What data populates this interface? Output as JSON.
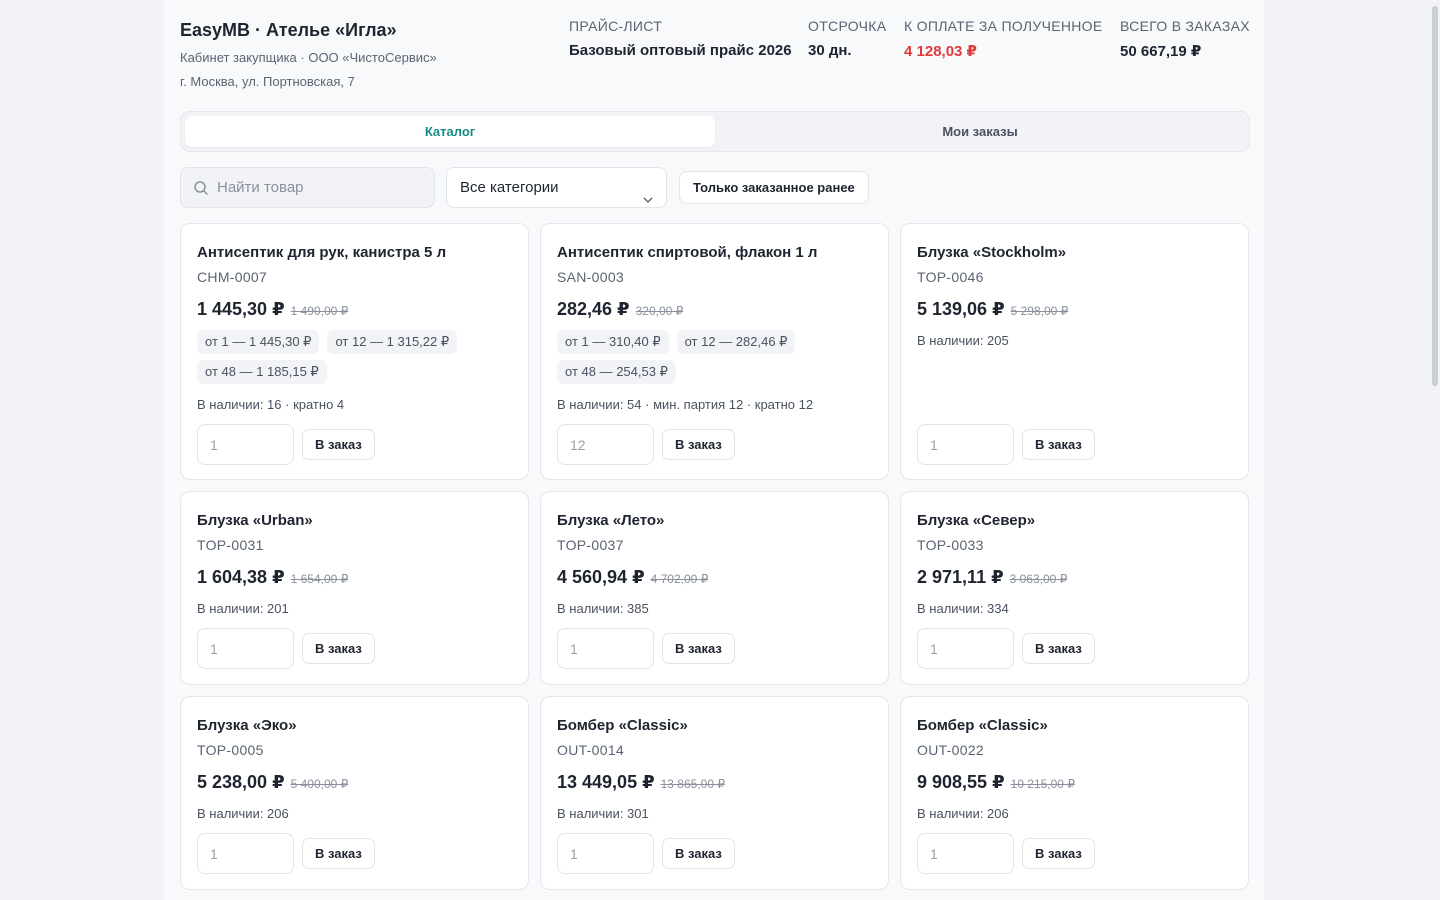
{
  "header": {
    "title": "EasyMB · Ателье «Игла»",
    "subtitle": "Кабинет закупщика · ООО «ЧистоСервис»",
    "address": "г. Москва, ул. Портновская, 7",
    "pricelist_label": "ПРАЙС-ЛИСТ",
    "pricelist_value": "Базовый оптовый прайс 2026",
    "deferral_label": "ОТСРОЧКА",
    "deferral_value": "30 дн.",
    "due_label": "К ОПЛАТЕ ЗА ПОЛУЧЕННОЕ",
    "due_value": "4 128,03 ₽",
    "total_label": "ВСЕГО В ЗАКАЗАХ",
    "total_value": "50 667,19 ₽",
    "due_color": "#e03a3a"
  },
  "tabs": [
    {
      "label": "Каталог",
      "active": true
    },
    {
      "label": "Мои заказы",
      "active": false
    }
  ],
  "filters": {
    "search_placeholder": "Найти товар",
    "category_value": "Все категории",
    "only_ordered_label": "Только заказанное ранее"
  },
  "order_label": "В заказ",
  "accent_color": "#178a86",
  "products": [
    {
      "name": "Антисептик для рук, канистра 5 л",
      "sku": "CHM-0007",
      "price": "1 445,30 ₽",
      "old_price": "1 490,00 ₽",
      "tiers": [
        "от 1 — 1 445,30 ₽",
        "от 12 — 1 315,22 ₽",
        "от 48 — 1 185,15 ₽"
      ],
      "stock": "В наличии: 16 · кратно 4",
      "qty": "1"
    },
    {
      "name": "Антисептик спиртовой, флакон 1 л",
      "sku": "SAN-0003",
      "price": "282,46 ₽",
      "old_price": "320,00 ₽",
      "tiers": [
        "от 1 — 310,40 ₽",
        "от 12 — 282,46 ₽",
        "от 48 — 254,53 ₽"
      ],
      "stock": "В наличии: 54 · мин. партия 12 · кратно 12",
      "qty": "12"
    },
    {
      "name": "Блузка «Stockholm»",
      "sku": "TOP-0046",
      "price": "5 139,06 ₽",
      "old_price": "5 298,00 ₽",
      "tiers": [],
      "stock": "В наличии: 205",
      "qty": "1"
    },
    {
      "name": "Блузка «Urban»",
      "sku": "TOP-0031",
      "price": "1 604,38 ₽",
      "old_price": "1 654,00 ₽",
      "tiers": [],
      "stock": "В наличии: 201",
      "qty": "1"
    },
    {
      "name": "Блузка «Лето»",
      "sku": "TOP-0037",
      "price": "4 560,94 ₽",
      "old_price": "4 702,00 ₽",
      "tiers": [],
      "stock": "В наличии: 385",
      "qty": "1"
    },
    {
      "name": "Блузка «Север»",
      "sku": "TOP-0033",
      "price": "2 971,11 ₽",
      "old_price": "3 063,00 ₽",
      "tiers": [],
      "stock": "В наличии: 334",
      "qty": "1"
    },
    {
      "name": "Блузка «Эко»",
      "sku": "TOP-0005",
      "price": "5 238,00 ₽",
      "old_price": "5 400,00 ₽",
      "tiers": [],
      "stock": "В наличии: 206",
      "qty": "1"
    },
    {
      "name": "Бомбер «Classic»",
      "sku": "OUT-0014",
      "price": "13 449,05 ₽",
      "old_price": "13 865,00 ₽",
      "tiers": [],
      "stock": "В наличии: 301",
      "qty": "1"
    },
    {
      "name": "Бомбер «Classic»",
      "sku": "OUT-0022",
      "price": "9 908,55 ₽",
      "old_price": "10 215,00 ₽",
      "tiers": [],
      "stock": "В наличии: 206",
      "qty": "1"
    }
  ]
}
